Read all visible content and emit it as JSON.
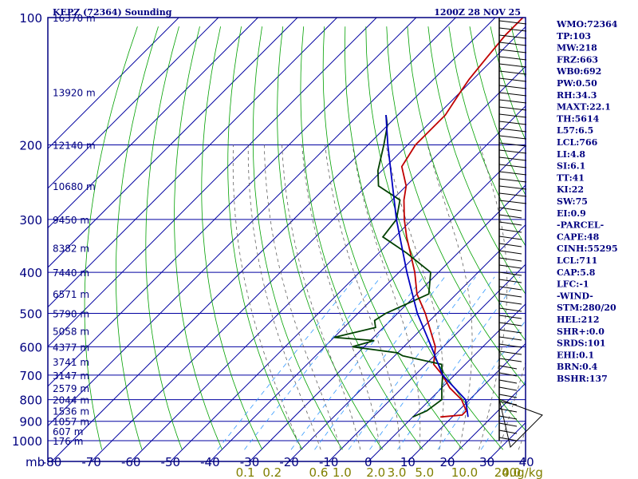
{
  "header": {
    "title": "KEPZ (72364) Sounding",
    "time": "1200Z 28 NOV 25"
  },
  "indices": [
    "WMO:72364",
    "TP:103",
    "MW:218",
    "FRZ:663",
    "WB0:692",
    "PW:0.50",
    "RH:34.3",
    "MAXT:22.1",
    "TH:5614",
    "L57:6.5",
    "LCL:766",
    "LI:4.8",
    "SI:6.1",
    "TT:41",
    "KI:22",
    "SW:75",
    "EI:0.9",
    "-PARCEL-",
    "CAPE:48",
    "CINH:55295",
    "LCL:711",
    "CAP:5.8",
    "LFC:-1",
    "-WIND-",
    "STM:280/20",
    "HEL:212",
    "SHR+:0.0",
    "SRDS:101",
    "EHI:0.1",
    "BRN:0.4",
    "BSHR:137"
  ],
  "colors": {
    "frame": "#000080",
    "isobar": "#0000a0",
    "isotherm": "#0000a0",
    "dry_adiabat": "#00a000",
    "moist_adiabat": "#606060",
    "mixing_ratio": "#3399ff",
    "temperature": "#c00000",
    "dewpoint": "#004000",
    "parcel": "#0000c0",
    "mix_label": "#808000",
    "wind": "#000000"
  },
  "chart_data": {
    "type": "line",
    "title": "KEPZ (72364) Sounding",
    "xlabel": "",
    "ylabel": "mb",
    "x_ticks": [
      -80,
      -70,
      -60,
      -50,
      -40,
      -30,
      -20,
      -10,
      0,
      10,
      20,
      30,
      40
    ],
    "pressure_levels": [
      100,
      200,
      300,
      400,
      500,
      600,
      700,
      800,
      900,
      1000
    ],
    "height_labels": [
      {
        "p": 100,
        "label": "16370 m"
      },
      {
        "p": 150,
        "label": "13920 m"
      },
      {
        "p": 200,
        "label": "12140 m"
      },
      {
        "p": 250,
        "label": "10680 m"
      },
      {
        "p": 300,
        "label": "9450 m"
      },
      {
        "p": 350,
        "label": "8382 m"
      },
      {
        "p": 400,
        "label": "7440 m"
      },
      {
        "p": 450,
        "label": "6571 m"
      },
      {
        "p": 500,
        "label": "5790 m"
      },
      {
        "p": 550,
        "label": "5058 m"
      },
      {
        "p": 600,
        "label": "4377 m"
      },
      {
        "p": 650,
        "label": "3741 m"
      },
      {
        "p": 700,
        "label": "3147 m"
      },
      {
        "p": 750,
        "label": "2579 m"
      },
      {
        "p": 800,
        "label": "2044 m"
      },
      {
        "p": 850,
        "label": "1536 m"
      },
      {
        "p": 900,
        "label": "1057 m"
      },
      {
        "p": 950,
        "label": "607 m"
      },
      {
        "p": 1000,
        "label": "176 m"
      }
    ],
    "mixing_ratio_labels": [
      "0.1",
      "0.2",
      "0.6",
      "1.0",
      "2.0",
      "3.0",
      "5.0",
      "10.0",
      "20.0",
      "40g/kg"
    ],
    "mixing_ratio_values": [
      0.1,
      0.2,
      0.6,
      1.0,
      2.0,
      3.0,
      5.0,
      10.0,
      20.0,
      40.0
    ],
    "series": [
      {
        "key": "temperature",
        "points": [
          [
            879,
            7
          ],
          [
            870,
            12
          ],
          [
            850,
            12
          ],
          [
            825,
            10
          ],
          [
            800,
            8
          ],
          [
            750,
            2
          ],
          [
            700,
            -3
          ],
          [
            660,
            -8
          ],
          [
            600,
            -12
          ],
          [
            500,
            -23
          ],
          [
            450,
            -30
          ],
          [
            400,
            -36
          ],
          [
            360,
            -42
          ],
          [
            330,
            -47
          ],
          [
            300,
            -52
          ],
          [
            270,
            -57
          ],
          [
            250,
            -60
          ],
          [
            225,
            -66
          ],
          [
            200,
            -68
          ],
          [
            170,
            -68
          ],
          [
            150,
            -70
          ],
          [
            140,
            -71
          ],
          [
            125,
            -72
          ],
          [
            110,
            -73
          ],
          [
            100,
            -73
          ]
        ]
      },
      {
        "key": "dewpoint",
        "points": [
          [
            879,
            0
          ],
          [
            850,
            2
          ],
          [
            800,
            3
          ],
          [
            750,
            0
          ],
          [
            700,
            -3
          ],
          [
            660,
            -6
          ],
          [
            630,
            -18
          ],
          [
            620,
            -20
          ],
          [
            600,
            -33
          ],
          [
            580,
            -29
          ],
          [
            570,
            -40
          ],
          [
            540,
            -32
          ],
          [
            520,
            -34
          ],
          [
            500,
            -33
          ],
          [
            450,
            -27
          ],
          [
            400,
            -32
          ],
          [
            360,
            -43
          ],
          [
            330,
            -53
          ],
          [
            300,
            -54
          ],
          [
            270,
            -58
          ],
          [
            250,
            -67
          ],
          [
            230,
            -71
          ],
          [
            200,
            -76
          ],
          [
            180,
            -80
          ],
          [
            170,
            -83
          ]
        ]
      },
      {
        "key": "parcel",
        "points": [
          [
            879,
            14
          ],
          [
            800,
            9
          ],
          [
            700,
            -3
          ],
          [
            600,
            -13
          ],
          [
            500,
            -25
          ],
          [
            400,
            -38
          ],
          [
            300,
            -54
          ],
          [
            200,
            -75
          ],
          [
            170,
            -83
          ]
        ]
      }
    ]
  }
}
